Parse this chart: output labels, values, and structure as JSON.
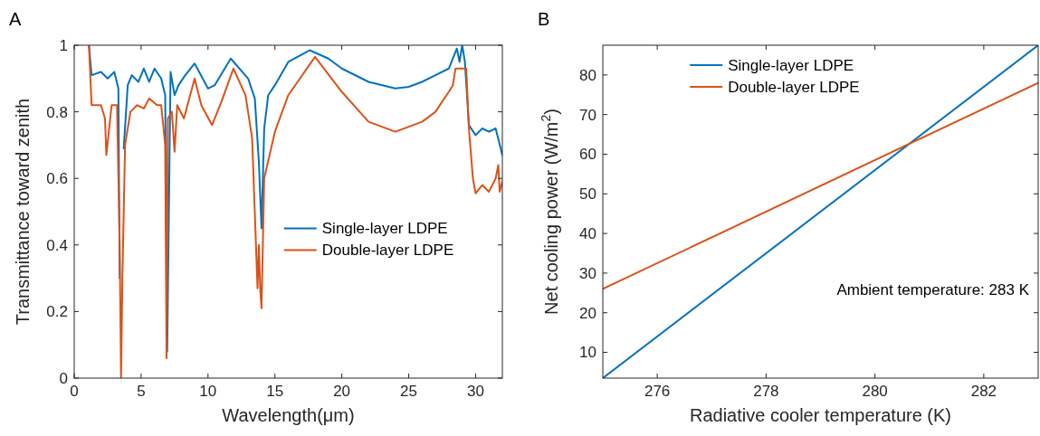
{
  "chart_data": [
    {
      "type": "line",
      "title": "A",
      "xlabel": "Wavelength(μm)",
      "ylabel": "Transmittance toward zenith",
      "xlim": [
        0,
        32
      ],
      "ylim": [
        0,
        1
      ],
      "xticks": [
        0,
        5,
        10,
        15,
        20,
        25,
        30
      ],
      "yticks": [
        0,
        0.2,
        0.4,
        0.6,
        0.8,
        1
      ],
      "legend": "right",
      "grid": false,
      "series": [
        {
          "name": "Single-layer LDPE",
          "color": "#0072bd",
          "x": [
            1.1,
            1.3,
            2,
            2.5,
            3,
            3.3,
            3.4,
            3.5,
            3.7,
            4,
            4.3,
            4.8,
            5.2,
            5.6,
            6,
            6.5,
            6.8,
            6.95,
            7.2,
            7.5,
            7.8,
            8.3,
            9,
            10,
            10.5,
            11.7,
            13,
            13.5,
            13.8,
            13.9,
            14,
            14.2,
            14.5,
            15,
            16,
            17.6,
            19,
            20,
            22,
            24,
            25,
            26,
            27,
            28,
            28.3,
            28.6,
            28.8,
            29,
            29.2,
            29.5,
            30,
            30.5,
            31,
            31.5,
            32
          ],
          "values": [
            1,
            0.91,
            0.92,
            0.9,
            0.92,
            0.87,
            0.3,
            null,
            0.69,
            0.88,
            0.91,
            0.89,
            0.93,
            0.89,
            0.93,
            0.9,
            0.85,
            0.08,
            0.92,
            0.85,
            0.88,
            0.91,
            0.945,
            0.87,
            0.88,
            0.96,
            0.9,
            0.84,
            0.65,
            0.55,
            0.45,
            0.75,
            0.85,
            0.88,
            0.95,
            0.985,
            0.96,
            0.93,
            0.89,
            0.87,
            0.875,
            0.89,
            0.91,
            0.93,
            0.96,
            0.99,
            0.95,
            1,
            0.95,
            0.76,
            0.73,
            0.75,
            0.74,
            0.75,
            0.67
          ]
        },
        {
          "name": "Double-layer LDPE",
          "color": "#d95319",
          "x": [
            1.1,
            1.3,
            2,
            2.3,
            2.4,
            2.8,
            3.2,
            3.4,
            3.5,
            3.6,
            3.8,
            4.2,
            4.7,
            5.2,
            5.6,
            6.2,
            6.5,
            6.8,
            6.9,
            7,
            7.3,
            7.5,
            7.7,
            8.2,
            9,
            9.5,
            10.3,
            11,
            11.9,
            12.8,
            13.3,
            13.7,
            13.8,
            13.9,
            14,
            14.2,
            15,
            16,
            18,
            20,
            22,
            24,
            26,
            27,
            28,
            28.3,
            28.5,
            29,
            29.3,
            29.5,
            29.8,
            30,
            30.5,
            31,
            31.5,
            31.7,
            31.8,
            32
          ],
          "values": [
            1,
            0.82,
            0.82,
            0.78,
            0.67,
            0.82,
            0.82,
            0.4,
            0,
            0.3,
            0.7,
            0.8,
            0.82,
            0.81,
            0.84,
            0.82,
            0.82,
            0.7,
            0.06,
            0.78,
            0.8,
            0.68,
            0.82,
            0.78,
            0.9,
            0.82,
            0.76,
            0.83,
            0.93,
            0.85,
            0.72,
            0.27,
            0.4,
            0.27,
            0.21,
            0.6,
            0.74,
            0.85,
            0.965,
            0.86,
            0.77,
            0.74,
            0.77,
            0.8,
            0.86,
            0.88,
            0.93,
            0.93,
            0.93,
            0.75,
            0.6,
            0.555,
            0.58,
            0.56,
            0.6,
            0.64,
            0.56,
            0.59
          ]
        }
      ]
    },
    {
      "type": "line",
      "title": "B",
      "xlabel": "Radiative cooler temperature (K)",
      "ylabel": "Net cooling power (W/m$^{2}$)",
      "xlim": [
        275,
        283
      ],
      "ylim": [
        3.5,
        87.5
      ],
      "xticks": [
        276,
        278,
        280,
        282
      ],
      "yticks": [
        10,
        20,
        30,
        40,
        50,
        60,
        70,
        80
      ],
      "legend": "top",
      "grid": false,
      "annotations": [
        "Ambient temperature: 283 K"
      ],
      "series": [
        {
          "name": "Single-layer LDPE",
          "color": "#0072bd",
          "x": [
            275,
            283
          ],
          "values": [
            3.5,
            87.5
          ]
        },
        {
          "name": "Double-layer LDPE",
          "color": "#d95319",
          "x": [
            275,
            283
          ],
          "values": [
            26,
            78
          ]
        }
      ]
    }
  ]
}
